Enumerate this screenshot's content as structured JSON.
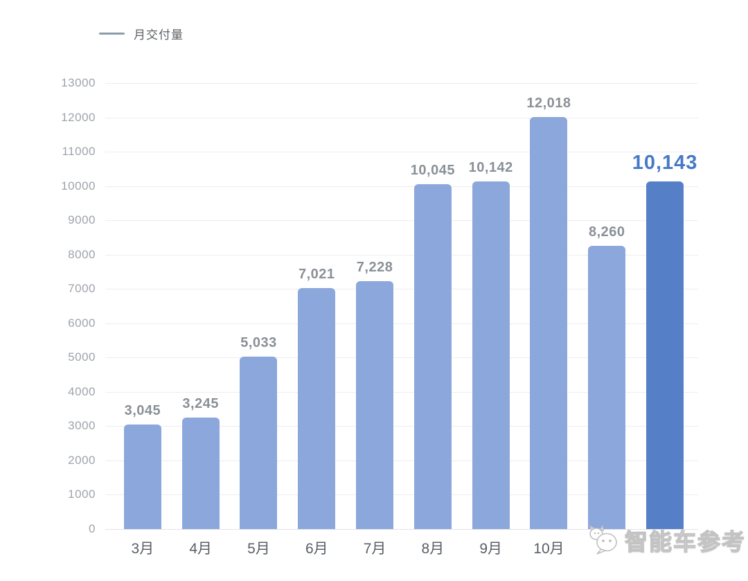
{
  "legend": {
    "label": "月交付量",
    "marker": "line-marker"
  },
  "watermark": {
    "text": "智能车参考",
    "logo": "mascot-face-icon"
  },
  "colors": {
    "bar": "#8CA7DB",
    "bar_highlight": "#5580C7",
    "value_label": "#8A9097",
    "value_label_highlight": "#4679C8",
    "y_tick_text": "#9EA3AB",
    "x_tick_text": "#585D64",
    "gridline": "#ECEDF1",
    "legend_marker": "#8D9DAD",
    "background": "#FFFFFF"
  },
  "chart_data": {
    "type": "bar",
    "title": "",
    "xlabel": "",
    "ylabel": "",
    "legend_entries": [
      "月交付量"
    ],
    "legend_position": "top-left",
    "grid": true,
    "categories": [
      "3月",
      "4月",
      "5月",
      "6月",
      "7月",
      "8月",
      "9月",
      "10月",
      "",
      ""
    ],
    "values": [
      3045,
      3245,
      5033,
      7021,
      7228,
      10045,
      10142,
      12018,
      8260,
      10143
    ],
    "value_labels": [
      "3,045",
      "3,245",
      "5,033",
      "7,021",
      "7,228",
      "10,045",
      "10,142",
      "12,018",
      "8,260",
      "10,143"
    ],
    "highlight_index": 9,
    "ylim": [
      0,
      13000
    ],
    "ytick_step": 1000
  }
}
